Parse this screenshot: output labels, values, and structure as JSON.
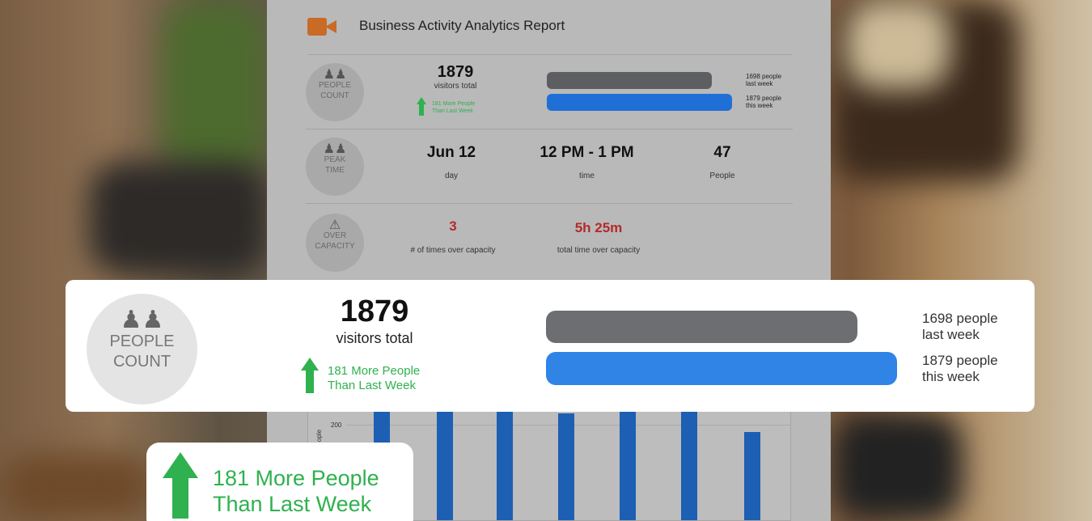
{
  "report": {
    "title": "Business Activity Analytics Report",
    "people_count": {
      "label_line1": "PEOPLE",
      "label_line2": "COUNT",
      "total": "1879",
      "total_caption": "visitors total",
      "delta_line1": "181 More People",
      "delta_line2": "Than Last Week",
      "last_week_line1": "1698 people",
      "last_week_line2": "last week",
      "this_week_line1": "1879 people",
      "this_week_line2": "this week",
      "last_week_value": 1698,
      "this_week_value": 1879
    },
    "peak_time": {
      "label_line1": "PEAK",
      "label_line2": "TIME",
      "day_value": "Jun 12",
      "day_caption": "day",
      "time_value": "12 PM - 1 PM",
      "time_caption": "time",
      "people_value": "47",
      "people_caption": "People"
    },
    "over_capacity": {
      "label_line1": "OVER",
      "label_line2": "CAPACITY",
      "times_value": "3",
      "times_caption": "# of times over capacity",
      "duration_value": "5h 25m",
      "duration_caption": "total time over capacity"
    },
    "chart": {
      "tick_label": "200",
      "ylabel_fragment": "ople"
    }
  },
  "card": {
    "label_line1": "PEOPLE",
    "label_line2": "COUNT",
    "total": "1879",
    "total_caption": "visitors total",
    "delta_line1": "181 More People",
    "delta_line2": "Than Last Week",
    "last_week_line1": "1698 people",
    "last_week_line2": "last week",
    "this_week_line1": "1879 people",
    "this_week_line2": "this week"
  },
  "callout": {
    "line1": "181 More People",
    "line2": "Than Last Week"
  },
  "colors": {
    "accent_green": "#2fb14f",
    "this_week_blue": "#2f84e6",
    "last_week_gray": "#6d6e71",
    "camera_orange": "#c96a27",
    "alert_red": "#b42a2a"
  },
  "icons": {
    "camera": "video-camera-icon",
    "people": "people-icon",
    "warning": "warning-icon"
  }
}
